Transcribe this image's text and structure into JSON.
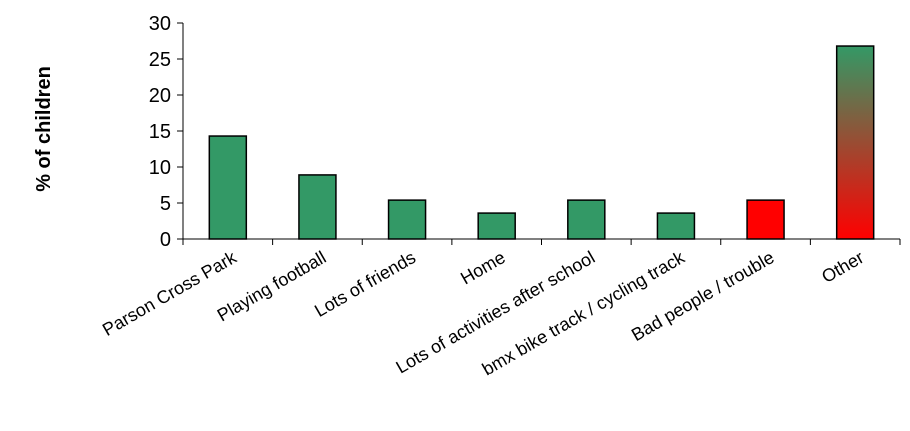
{
  "chart_data": {
    "type": "bar",
    "title": "",
    "xlabel": "",
    "ylabel": "% of children",
    "ylim": [
      0,
      30
    ],
    "yticks": [
      0,
      5,
      10,
      15,
      20,
      25,
      30
    ],
    "grid": false,
    "legend": "none",
    "categories": [
      "Parson Cross Park",
      "Playing football",
      "Lots of friends",
      "Home",
      "Lots of activities after school",
      "bmx bike track / cycling track",
      "Bad people / trouble",
      "Other"
    ],
    "values": [
      14.3,
      8.9,
      5.4,
      3.6,
      5.4,
      3.6,
      5.4,
      26.8
    ],
    "bar_fills": [
      "green",
      "green",
      "green",
      "green",
      "green",
      "green",
      "red",
      "gradient"
    ],
    "colors": {
      "green": "#339966",
      "red": "#ff0000",
      "gradient_top": "#339966",
      "gradient_bottom": "#ff0000",
      "bar_stroke": "#000000",
      "axis": "#000000"
    }
  }
}
